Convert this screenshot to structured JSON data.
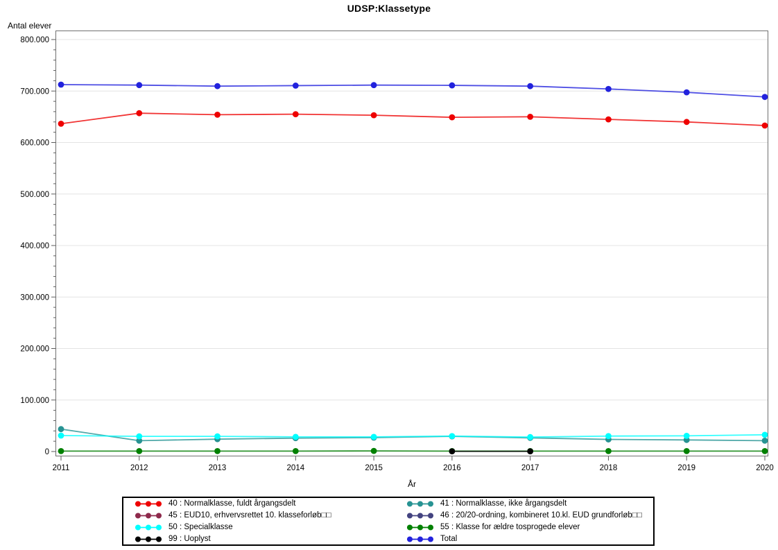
{
  "page": {
    "title": "UDSP:Klassetype"
  },
  "chart_data": {
    "type": "line",
    "title": "UDSP:Klassetype",
    "xlabel": "År",
    "ylabel": "Antal elever",
    "x": [
      2011,
      2012,
      2013,
      2014,
      2015,
      2016,
      2017,
      2018,
      2019,
      2020
    ],
    "xlim": [
      2011,
      2020
    ],
    "ylim": [
      0,
      800000
    ],
    "yticks": [
      0,
      100000,
      200000,
      300000,
      400000,
      500000,
      600000,
      700000,
      800000
    ],
    "ytick_labels": [
      "0",
      "100.000",
      "200.000",
      "300.000",
      "400.000",
      "500.000",
      "600.000",
      "700.000",
      "800.000"
    ],
    "yminor_step": 20000,
    "grid": "horizontal",
    "grid_color": "#e4e4e4",
    "frame_color": "#6f6f6f",
    "legend_position": "bottom-box-2columns",
    "series": [
      {
        "id": "40",
        "name": "40 : Normalklasse, fuldt årgangsdelt",
        "color": "#ee0000",
        "values": [
          636500,
          657000,
          654000,
          655000,
          653000,
          649000,
          650000,
          645000,
          640000,
          633000
        ]
      },
      {
        "id": "41",
        "name": "41 : Normalklasse, ikke årgangsdelt",
        "color": "#279393",
        "values": [
          43500,
          21000,
          24000,
          26000,
          27000,
          29500,
          26500,
          23500,
          22500,
          21000
        ]
      },
      {
        "id": "45",
        "name": "45 : EUD10, erhvervsrettet 10. klasseforløb□□",
        "color": "#8e2a4c",
        "values": []
      },
      {
        "id": "46",
        "name": "46 : 20/20-ordning, kombineret 10.kl. EUD grundforløb□□",
        "color": "#434380",
        "values": []
      },
      {
        "id": "50",
        "name": "50 : Specialklasse",
        "color": "#00ffff",
        "values": [
          31000,
          29500,
          29500,
          28500,
          28500,
          30000,
          28000,
          30000,
          30500,
          32500
        ]
      },
      {
        "id": "55",
        "name": "55 : Klasse for ældre tosprogede elever",
        "color": "#008000",
        "values": [
          800,
          800,
          800,
          800,
          1200,
          800,
          800,
          800,
          800,
          800
        ]
      },
      {
        "id": "99",
        "name": "99 : Uoplyst",
        "color": "#000000",
        "values": [
          null,
          null,
          null,
          null,
          null,
          300,
          300,
          null,
          null,
          null
        ]
      },
      {
        "id": "total",
        "name": "Total",
        "color": "#2222dd",
        "values": [
          712500,
          711500,
          709500,
          710500,
          711500,
          711000,
          709500,
          704000,
          697500,
          688500
        ]
      }
    ]
  }
}
